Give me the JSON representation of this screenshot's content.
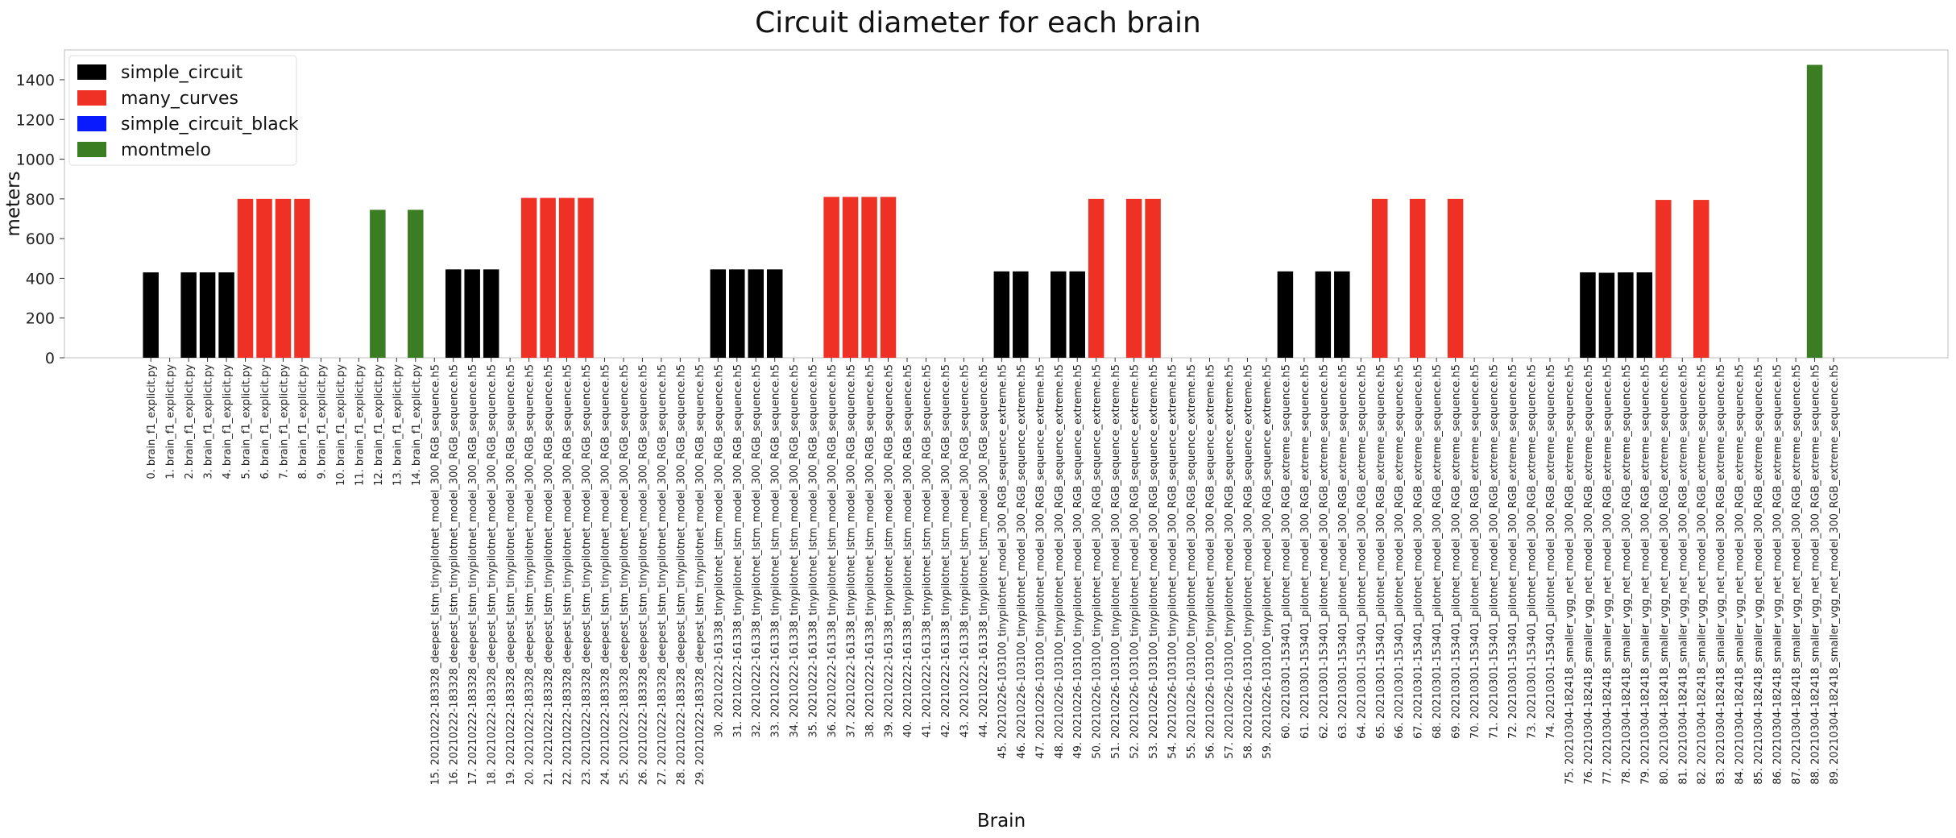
{
  "chart_data": {
    "type": "bar",
    "title": "Circuit diameter for each brain",
    "xlabel": "Brain",
    "ylabel": "meters",
    "ylim": [
      0,
      1550
    ],
    "yticks": [
      0,
      200,
      400,
      600,
      800,
      1000,
      1200,
      1400
    ],
    "grid": false,
    "legend_position": "top-left",
    "legend": [
      {
        "name": "simple_circuit",
        "color": "#000000"
      },
      {
        "name": "many_curves",
        "color": "#ee3124"
      },
      {
        "name": "simple_circuit_black",
        "color": "#0a1aff"
      },
      {
        "name": "montmelo",
        "color": "#3a7d22"
      }
    ],
    "categories": [
      "0. brain_f1_explicit.py",
      "1. brain_f1_explicit.py",
      "2. brain_f1_explicit.py",
      "3. brain_f1_explicit.py",
      "4. brain_f1_explicit.py",
      "5. brain_f1_explicit.py",
      "6. brain_f1_explicit.py",
      "7. brain_f1_explicit.py",
      "8. brain_f1_explicit.py",
      "9. brain_f1_explicit.py",
      "10. brain_f1_explicit.py",
      "11. brain_f1_explicit.py",
      "12. brain_f1_explicit.py",
      "13. brain_f1_explicit.py",
      "14. brain_f1_explicit.py",
      "15. 20210222-183328_deepest_lstm_tinypilotnet_model_300_RGB_sequence.h5",
      "16. 20210222-183328_deepest_lstm_tinypilotnet_model_300_RGB_sequence.h5",
      "17. 20210222-183328_deepest_lstm_tinypilotnet_model_300_RGB_sequence.h5",
      "18. 20210222-183328_deepest_lstm_tinypilotnet_model_300_RGB_sequence.h5",
      "19. 20210222-183328_deepest_lstm_tinypilotnet_model_300_RGB_sequence.h5",
      "20. 20210222-183328_deepest_lstm_tinypilotnet_model_300_RGB_sequence.h5",
      "21. 20210222-183328_deepest_lstm_tinypilotnet_model_300_RGB_sequence.h5",
      "22. 20210222-183328_deepest_lstm_tinypilotnet_model_300_RGB_sequence.h5",
      "23. 20210222-183328_deepest_lstm_tinypilotnet_model_300_RGB_sequence.h5",
      "24. 20210222-183328_deepest_lstm_tinypilotnet_model_300_RGB_sequence.h5",
      "25. 20210222-183328_deepest_lstm_tinypilotnet_model_300_RGB_sequence.h5",
      "26. 20210222-183328_deepest_lstm_tinypilotnet_model_300_RGB_sequence.h5",
      "27. 20210222-183328_deepest_lstm_tinypilotnet_model_300_RGB_sequence.h5",
      "28. 20210222-183328_deepest_lstm_tinypilotnet_model_300_RGB_sequence.h5",
      "29. 20210222-183328_deepest_lstm_tinypilotnet_model_300_RGB_sequence.h5",
      "30. 20210222-161338_tinypilotnet_lstm_model_300_RGB_sequence.h5",
      "31. 20210222-161338_tinypilotnet_lstm_model_300_RGB_sequence.h5",
      "32. 20210222-161338_tinypilotnet_lstm_model_300_RGB_sequence.h5",
      "33. 20210222-161338_tinypilotnet_lstm_model_300_RGB_sequence.h5",
      "34. 20210222-161338_tinypilotnet_lstm_model_300_RGB_sequence.h5",
      "35. 20210222-161338_tinypilotnet_lstm_model_300_RGB_sequence.h5",
      "36. 20210222-161338_tinypilotnet_lstm_model_300_RGB_sequence.h5",
      "37. 20210222-161338_tinypilotnet_lstm_model_300_RGB_sequence.h5",
      "38. 20210222-161338_tinypilotnet_lstm_model_300_RGB_sequence.h5",
      "39. 20210222-161338_tinypilotnet_lstm_model_300_RGB_sequence.h5",
      "40. 20210222-161338_tinypilotnet_lstm_model_300_RGB_sequence.h5",
      "41. 20210222-161338_tinypilotnet_lstm_model_300_RGB_sequence.h5",
      "42. 20210222-161338_tinypilotnet_lstm_model_300_RGB_sequence.h5",
      "43. 20210222-161338_tinypilotnet_lstm_model_300_RGB_sequence.h5",
      "44. 20210222-161338_tinypilotnet_lstm_model_300_RGB_sequence.h5",
      "45. 20210226-103100_tinypilotnet_model_300_RGB_sequence_extreme.h5",
      "46. 20210226-103100_tinypilotnet_model_300_RGB_sequence_extreme.h5",
      "47. 20210226-103100_tinypilotnet_model_300_RGB_sequence_extreme.h5",
      "48. 20210226-103100_tinypilotnet_model_300_RGB_sequence_extreme.h5",
      "49. 20210226-103100_tinypilotnet_model_300_RGB_sequence_extreme.h5",
      "50. 20210226-103100_tinypilotnet_model_300_RGB_sequence_extreme.h5",
      "51. 20210226-103100_tinypilotnet_model_300_RGB_sequence_extreme.h5",
      "52. 20210226-103100_tinypilotnet_model_300_RGB_sequence_extreme.h5",
      "53. 20210226-103100_tinypilotnet_model_300_RGB_sequence_extreme.h5",
      "54. 20210226-103100_tinypilotnet_model_300_RGB_sequence_extreme.h5",
      "55. 20210226-103100_tinypilotnet_model_300_RGB_sequence_extreme.h5",
      "56. 20210226-103100_tinypilotnet_model_300_RGB_sequence_extreme.h5",
      "57. 20210226-103100_tinypilotnet_model_300_RGB_sequence_extreme.h5",
      "58. 20210226-103100_tinypilotnet_model_300_RGB_sequence_extreme.h5",
      "59. 20210226-103100_tinypilotnet_model_300_RGB_sequence_extreme.h5",
      "60. 20210301-153401_pilotnet_model_300_RGB_extreme_sequence.h5",
      "61. 20210301-153401_pilotnet_model_300_RGB_extreme_sequence.h5",
      "62. 20210301-153401_pilotnet_model_300_RGB_extreme_sequence.h5",
      "63. 20210301-153401_pilotnet_model_300_RGB_extreme_sequence.h5",
      "64. 20210301-153401_pilotnet_model_300_RGB_extreme_sequence.h5",
      "65. 20210301-153401_pilotnet_model_300_RGB_extreme_sequence.h5",
      "66. 20210301-153401_pilotnet_model_300_RGB_extreme_sequence.h5",
      "67. 20210301-153401_pilotnet_model_300_RGB_extreme_sequence.h5",
      "68. 20210301-153401_pilotnet_model_300_RGB_extreme_sequence.h5",
      "69. 20210301-153401_pilotnet_model_300_RGB_extreme_sequence.h5",
      "70. 20210301-153401_pilotnet_model_300_RGB_extreme_sequence.h5",
      "71. 20210301-153401_pilotnet_model_300_RGB_extreme_sequence.h5",
      "72. 20210301-153401_pilotnet_model_300_RGB_extreme_sequence.h5",
      "73. 20210301-153401_pilotnet_model_300_RGB_extreme_sequence.h5",
      "74. 20210301-153401_pilotnet_model_300_RGB_extreme_sequence.h5",
      "75. 20210304-182418_smaller_vgg_net_model_300_RGB_extreme_sequence.h5",
      "76. 20210304-182418_smaller_vgg_net_model_300_RGB_extreme_sequence.h5",
      "77. 20210304-182418_smaller_vgg_net_model_300_RGB_extreme_sequence.h5",
      "78. 20210304-182418_smaller_vgg_net_model_300_RGB_extreme_sequence.h5",
      "79. 20210304-182418_smaller_vgg_net_model_300_RGB_extreme_sequence.h5",
      "80. 20210304-182418_smaller_vgg_net_model_300_RGB_extreme_sequence.h5",
      "81. 20210304-182418_smaller_vgg_net_model_300_RGB_extreme_sequence.h5",
      "82. 20210304-182418_smaller_vgg_net_model_300_RGB_extreme_sequence.h5",
      "83. 20210304-182418_smaller_vgg_net_model_300_RGB_extreme_sequence.h5",
      "84. 20210304-182418_smaller_vgg_net_model_300_RGB_extreme_sequence.h5",
      "85. 20210304-182418_smaller_vgg_net_model_300_RGB_extreme_sequence.h5",
      "86. 20210304-182418_smaller_vgg_net_model_300_RGB_extreme_sequence.h5",
      "87. 20210304-182418_smaller_vgg_net_model_300_RGB_extreme_sequence.h5",
      "88. 20210304-182418_smaller_vgg_net_model_300_RGB_extreme_sequence.h5",
      "89. 20210304-182418_smaller_vgg_net_model_300_RGB_extreme_sequence.h5"
    ],
    "values": [
      430,
      0,
      430,
      430,
      430,
      800,
      800,
      800,
      800,
      0,
      0,
      0,
      745,
      0,
      745,
      0,
      445,
      445,
      445,
      0,
      805,
      805,
      805,
      805,
      0,
      0,
      0,
      0,
      0,
      0,
      445,
      445,
      445,
      445,
      0,
      0,
      810,
      810,
      810,
      810,
      0,
      0,
      0,
      0,
      0,
      435,
      435,
      0,
      435,
      435,
      800,
      0,
      800,
      800,
      0,
      0,
      0,
      0,
      0,
      0,
      435,
      0,
      435,
      435,
      0,
      800,
      0,
      800,
      0,
      800,
      0,
      0,
      0,
      0,
      0,
      0,
      430,
      428,
      430,
      430,
      795,
      0,
      795,
      0,
      0,
      0,
      0,
      0,
      1475,
      0
    ],
    "bar_colors": [
      "#000000",
      "#000000",
      "#000000",
      "#000000",
      "#000000",
      "#ee3124",
      "#ee3124",
      "#ee3124",
      "#ee3124",
      "#000000",
      "#000000",
      "#000000",
      "#3a7d22",
      "#3a7d22",
      "#3a7d22",
      "#000000",
      "#000000",
      "#000000",
      "#000000",
      "#000000",
      "#ee3124",
      "#ee3124",
      "#ee3124",
      "#ee3124",
      "#ee3124",
      "#ee3124",
      "#ee3124",
      "#ee3124",
      "#ee3124",
      "#ee3124",
      "#000000",
      "#000000",
      "#000000",
      "#000000",
      "#000000",
      "#000000",
      "#ee3124",
      "#ee3124",
      "#ee3124",
      "#ee3124",
      "#000000",
      "#000000",
      "#000000",
      "#000000",
      "#000000",
      "#000000",
      "#000000",
      "#000000",
      "#000000",
      "#000000",
      "#ee3124",
      "#ee3124",
      "#ee3124",
      "#ee3124",
      "#ee3124",
      "#000000",
      "#000000",
      "#000000",
      "#000000",
      "#000000",
      "#000000",
      "#000000",
      "#000000",
      "#000000",
      "#000000",
      "#ee3124",
      "#ee3124",
      "#ee3124",
      "#ee3124",
      "#ee3124",
      "#000000",
      "#000000",
      "#000000",
      "#000000",
      "#000000",
      "#000000",
      "#000000",
      "#000000",
      "#000000",
      "#000000",
      "#ee3124",
      "#ee3124",
      "#ee3124",
      "#ee3124",
      "#ee3124",
      "#3a7d22",
      "#3a7d22",
      "#3a7d22",
      "#3a7d22",
      "#3a7d22"
    ]
  }
}
